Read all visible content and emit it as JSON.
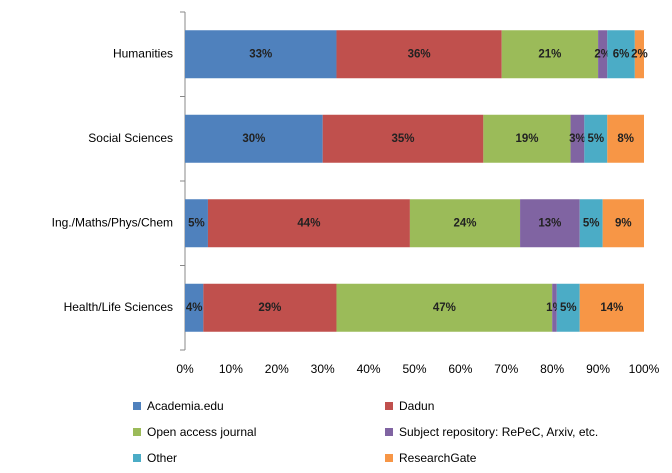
{
  "chart_data": {
    "type": "stacked_bar_horizontal",
    "categories": [
      "Humanities",
      "Social Sciences",
      "Ing./Maths/Phys/Chem",
      "Health/Life Sciences"
    ],
    "series": [
      {
        "name": "Academia.edu",
        "color": "#4F81BD",
        "values": [
          33,
          30,
          5,
          4
        ],
        "value_labels": [
          "33%",
          "30%",
          "5%",
          "4%"
        ]
      },
      {
        "name": "Dadun",
        "color": "#C0504D",
        "values": [
          36,
          35,
          44,
          29
        ],
        "value_labels": [
          "36%",
          "35%",
          "44%",
          "29%"
        ]
      },
      {
        "name": "Open access journal",
        "color": "#9BBB59",
        "values": [
          21,
          19,
          24,
          47
        ],
        "value_labels": [
          "21%",
          "19%",
          "24%",
          "47%"
        ]
      },
      {
        "name": "Subject repository: RePeC, Arxiv, etc.",
        "color": "#8064A2",
        "values": [
          2,
          3,
          13,
          1
        ],
        "value_labels": [
          "2%",
          "3%",
          "13%",
          "1%"
        ]
      },
      {
        "name": "Other",
        "color": "#4BACC6",
        "values": [
          6,
          5,
          5,
          5
        ],
        "value_labels": [
          "6%",
          "5%",
          "5%",
          "5%"
        ]
      },
      {
        "name": "ResearchGate",
        "color": "#F79646",
        "values": [
          2,
          8,
          9,
          14
        ],
        "value_labels": [
          "2%",
          "8%",
          "9%",
          "14%"
        ]
      }
    ],
    "xlim": [
      0,
      100
    ],
    "xticks": [
      {
        "value": 0,
        "label": "0%"
      },
      {
        "value": 10,
        "label": "10%"
      },
      {
        "value": 20,
        "label": "20%"
      },
      {
        "value": 30,
        "label": "30%"
      },
      {
        "value": 40,
        "label": "40%"
      },
      {
        "value": 50,
        "label": "50%"
      },
      {
        "value": 60,
        "label": "60%"
      },
      {
        "value": 70,
        "label": "70%"
      },
      {
        "value": 80,
        "label": "80%"
      },
      {
        "value": 90,
        "label": "90%"
      },
      {
        "value": 100,
        "label": "100%"
      }
    ],
    "grid": false,
    "legend": "bottom"
  }
}
